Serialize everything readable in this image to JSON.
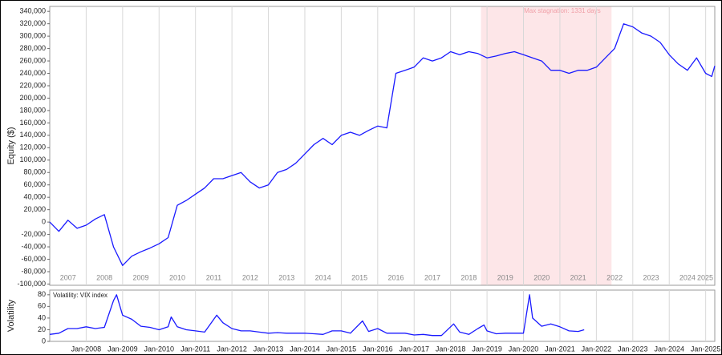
{
  "chart_data": [
    {
      "type": "line",
      "ylabel": "Equity ($)",
      "xlim": [
        "2007-01",
        "2025-04"
      ],
      "ylim": [
        -102000,
        348000
      ],
      "yticks": [
        {
          "value": -100000,
          "label": "-100,000"
        },
        {
          "value": -80000,
          "label": "-80,000"
        },
        {
          "value": -60000,
          "label": "-60,000"
        },
        {
          "value": -40000,
          "label": "-40,000"
        },
        {
          "value": -20000,
          "label": "-20,000"
        },
        0,
        {
          "value": 20000,
          "label": "20,000"
        },
        {
          "value": 40000,
          "label": "40,000"
        },
        {
          "value": 60000,
          "label": "60,000"
        },
        {
          "value": 80000,
          "label": "80,000"
        },
        {
          "value": 100000,
          "label": "100,000"
        },
        {
          "value": 120000,
          "label": "120,000"
        },
        {
          "value": 140000,
          "label": "140,000"
        },
        {
          "value": 160000,
          "label": "160,000"
        },
        {
          "value": 180000,
          "label": "180,000"
        },
        {
          "value": 200000,
          "label": "200,000"
        },
        {
          "value": 220000,
          "label": "220,000"
        },
        {
          "value": 240000,
          "label": "240,000"
        },
        {
          "value": 260000,
          "label": "260,000"
        },
        {
          "value": 280000,
          "label": "280,000"
        },
        {
          "value": 300000,
          "label": "300,000"
        },
        {
          "value": 320000,
          "label": "320,000"
        },
        {
          "value": 340000,
          "label": "340,000"
        }
      ],
      "year_labels": [
        "2007",
        "2008",
        "2009",
        "2010",
        "2011",
        "2012",
        "2013",
        "2014",
        "2015",
        "2016",
        "2017",
        "2018",
        "2019",
        "2020",
        "2021",
        "2022",
        "2023",
        "2024",
        "2025"
      ],
      "stagnation": {
        "label": "Max stagnation: 1331 days",
        "start": "2018-11",
        "end": "2022-06",
        "color": "#fde6e8"
      },
      "x": [
        "2007-01",
        "2007-04",
        "2007-07",
        "2007-10",
        "2008-01",
        "2008-04",
        "2008-07",
        "2008-10",
        "2009-01",
        "2009-04",
        "2009-07",
        "2009-10",
        "2010-01",
        "2010-04",
        "2010-07",
        "2010-10",
        "2011-01",
        "2011-04",
        "2011-07",
        "2011-10",
        "2012-01",
        "2012-04",
        "2012-07",
        "2012-10",
        "2013-01",
        "2013-04",
        "2013-07",
        "2013-10",
        "2014-01",
        "2014-04",
        "2014-07",
        "2014-10",
        "2015-01",
        "2015-04",
        "2015-07",
        "2015-10",
        "2016-01",
        "2016-04",
        "2016-07",
        "2016-10",
        "2017-01",
        "2017-04",
        "2017-07",
        "2017-10",
        "2018-01",
        "2018-04",
        "2018-07",
        "2018-10",
        "2019-01",
        "2019-04",
        "2019-07",
        "2019-10",
        "2020-01",
        "2020-04",
        "2020-07",
        "2020-10",
        "2021-01",
        "2021-04",
        "2021-07",
        "2021-10",
        "2022-01",
        "2022-04",
        "2022-07",
        "2022-10",
        "2023-01",
        "2023-04",
        "2023-07",
        "2023-10",
        "2024-01",
        "2024-04",
        "2024-07",
        "2024-10",
        "2025-01",
        "2025-03",
        "2025-04"
      ],
      "series": [
        {
          "color": "#1a1aff",
          "values": [
            0,
            -15000,
            3000,
            -10000,
            -5000,
            5000,
            12000,
            -40000,
            -70000,
            -55000,
            -48000,
            -42000,
            -35000,
            -25000,
            27000,
            35000,
            45000,
            55000,
            70000,
            70000,
            75000,
            80000,
            65000,
            55000,
            60000,
            80000,
            85000,
            95000,
            110000,
            125000,
            135000,
            125000,
            140000,
            145000,
            140000,
            148000,
            155000,
            152000,
            240000,
            245000,
            250000,
            265000,
            260000,
            265000,
            275000,
            270000,
            275000,
            272000,
            265000,
            268000,
            272000,
            275000,
            270000,
            265000,
            260000,
            245000,
            245000,
            240000,
            245000,
            245000,
            250000,
            265000,
            280000,
            320000,
            315000,
            305000,
            300000,
            290000,
            270000,
            255000,
            245000,
            265000,
            240000,
            235000,
            252000
          ]
        }
      ]
    },
    {
      "type": "line",
      "ylabel": "Volatility",
      "xlim": [
        "2007-01",
        "2025-04"
      ],
      "ylim": [
        0,
        88
      ],
      "yticks": [
        0,
        20,
        40,
        60,
        80
      ],
      "xticks": [
        {
          "value": "2008-01",
          "label": "Jan-2008"
        },
        {
          "value": "2009-01",
          "label": "Jan-2009"
        },
        {
          "value": "2010-01",
          "label": "Jan-2010"
        },
        {
          "value": "2011-01",
          "label": "Jan-2011"
        },
        {
          "value": "2012-01",
          "label": "Jan-2012"
        },
        {
          "value": "2013-01",
          "label": "Jan-2013"
        },
        {
          "value": "2014-01",
          "label": "Jan-2014"
        },
        {
          "value": "2015-01",
          "label": "Jan-2015"
        },
        {
          "value": "2016-01",
          "label": "Jan-2016"
        },
        {
          "value": "2017-01",
          "label": "Jan-2017"
        },
        {
          "value": "2018-01",
          "label": "Jan-2018"
        },
        {
          "value": "2019-01",
          "label": "Jan-2019"
        },
        {
          "value": "2020-01",
          "label": "Jan-2020"
        },
        {
          "value": "2021-01",
          "label": "Jan-2021"
        },
        {
          "value": "2022-01",
          "label": "Jan-2022"
        },
        {
          "value": "2023-01",
          "label": "Jan-2023"
        },
        {
          "value": "2024-01",
          "label": "Jan-2024"
        },
        {
          "value": "2025-01",
          "label": "Jan-2025"
        }
      ],
      "x": [
        "2007-01",
        "2007-04",
        "2007-07",
        "2007-10",
        "2008-01",
        "2008-04",
        "2008-07",
        "2008-10",
        "2008-11",
        "2009-01",
        "2009-04",
        "2009-07",
        "2009-10",
        "2010-01",
        "2010-04",
        "2010-05",
        "2010-07",
        "2010-10",
        "2011-01",
        "2011-04",
        "2011-08",
        "2011-10",
        "2012-01",
        "2012-04",
        "2012-07",
        "2012-10",
        "2013-01",
        "2013-04",
        "2013-07",
        "2013-10",
        "2014-01",
        "2014-04",
        "2014-07",
        "2014-10",
        "2015-01",
        "2015-04",
        "2015-08",
        "2015-10",
        "2016-01",
        "2016-04",
        "2016-07",
        "2016-10",
        "2017-01",
        "2017-04",
        "2017-07",
        "2017-10",
        "2018-02",
        "2018-04",
        "2018-07",
        "2018-10",
        "2018-12",
        "2019-01",
        "2019-04",
        "2019-07",
        "2019-10",
        "2020-01",
        "2020-03",
        "2020-04",
        "2020-07",
        "2020-10",
        "2021-01",
        "2021-04",
        "2021-07",
        "2021-09"
      ],
      "series": [
        {
          "name": "Volatility: VIX index",
          "color": "#1a1aff",
          "values": [
            12,
            14,
            22,
            22,
            25,
            22,
            24,
            70,
            80,
            45,
            38,
            26,
            24,
            20,
            25,
            42,
            25,
            20,
            18,
            16,
            45,
            32,
            22,
            18,
            18,
            16,
            14,
            15,
            14,
            14,
            14,
            13,
            12,
            18,
            18,
            14,
            35,
            17,
            22,
            14,
            14,
            14,
            11,
            12,
            10,
            10,
            30,
            16,
            12,
            22,
            28,
            18,
            13,
            14,
            14,
            14,
            80,
            40,
            26,
            30,
            25,
            18,
            17,
            20
          ]
        }
      ]
    }
  ]
}
